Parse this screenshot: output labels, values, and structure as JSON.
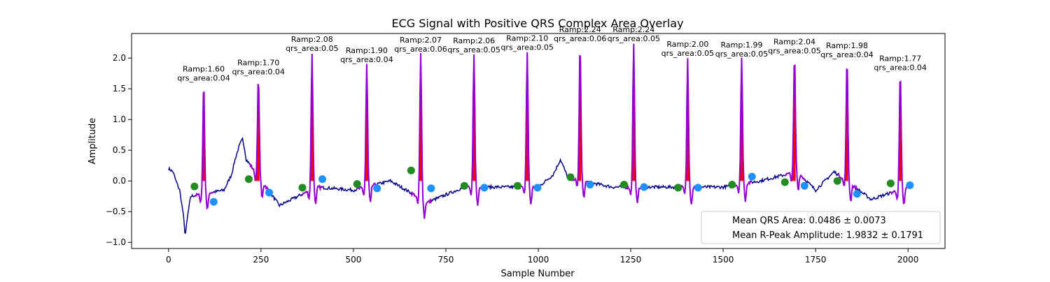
{
  "chart_data": {
    "type": "line",
    "title": "ECG Signal with Positive QRS Complex Area Overlay",
    "xlabel": "Sample Number",
    "ylabel": "Amplitude",
    "xlim": [
      -100,
      2100
    ],
    "ylim": [
      -1.1,
      2.4
    ],
    "grid": false,
    "x_ticks": [
      0,
      250,
      500,
      750,
      1000,
      1250,
      1500,
      1750,
      2000
    ],
    "y_ticks": [
      -1.0,
      -0.5,
      0.0,
      0.5,
      1.0,
      1.5,
      2.0
    ],
    "colors": {
      "signal": "#00008b",
      "qrs_segment": "#9400d3",
      "qrs_area_fill": "#ff0000",
      "q_point": "#228b22",
      "s_point": "#1e90ff"
    },
    "beats": [
      {
        "r_x": 95,
        "r_amp": 1.6,
        "qrs_area": 0.04,
        "q_x": 70,
        "q_y": -0.09,
        "s_x": 122,
        "s_y": -0.34,
        "label": [
          "Ramp:1.60",
          "qrs_area:0.04"
        ]
      },
      {
        "r_x": 243,
        "r_amp": 1.7,
        "qrs_area": 0.04,
        "q_x": 217,
        "q_y": 0.03,
        "s_x": 272,
        "s_y": -0.19,
        "label": [
          "Ramp:1.70",
          "qrs_area:0.04"
        ]
      },
      {
        "r_x": 388,
        "r_amp": 2.08,
        "qrs_area": 0.05,
        "q_x": 362,
        "q_y": -0.11,
        "s_x": 416,
        "s_y": 0.03,
        "label": [
          "Ramp:2.08",
          "qrs_area:0.05"
        ]
      },
      {
        "r_x": 536,
        "r_amp": 1.9,
        "qrs_area": 0.04,
        "q_x": 510,
        "q_y": -0.05,
        "s_x": 564,
        "s_y": -0.12,
        "label": [
          "Ramp:1.90",
          "qrs_area:0.04"
        ]
      },
      {
        "r_x": 682,
        "r_amp": 2.07,
        "qrs_area": 0.06,
        "q_x": 656,
        "q_y": 0.17,
        "s_x": 710,
        "s_y": -0.12,
        "label": [
          "Ramp:2.07",
          "qrs_area:0.06"
        ]
      },
      {
        "r_x": 826,
        "r_amp": 2.06,
        "qrs_area": 0.05,
        "q_x": 800,
        "q_y": -0.08,
        "s_x": 854,
        "s_y": -0.11,
        "label": [
          "Ramp:2.06",
          "qrs_area:0.05"
        ]
      },
      {
        "r_x": 970,
        "r_amp": 2.1,
        "qrs_area": 0.05,
        "q_x": 944,
        "q_y": -0.08,
        "s_x": 998,
        "s_y": -0.11,
        "label": [
          "Ramp:2.10",
          "qrs_area:0.05"
        ]
      },
      {
        "r_x": 1113,
        "r_amp": 2.24,
        "qrs_area": 0.06,
        "q_x": 1087,
        "q_y": 0.06,
        "s_x": 1140,
        "s_y": -0.06,
        "label": [
          "Ramp:2.24",
          "qrs_area:0.06"
        ]
      },
      {
        "r_x": 1258,
        "r_amp": 2.24,
        "qrs_area": 0.05,
        "q_x": 1232,
        "q_y": -0.06,
        "s_x": 1286,
        "s_y": -0.1,
        "label": [
          "Ramp:2.24",
          "qrs_area:0.05"
        ]
      },
      {
        "r_x": 1404,
        "r_amp": 2.0,
        "qrs_area": 0.05,
        "q_x": 1378,
        "q_y": -0.11,
        "s_x": 1432,
        "s_y": -0.11,
        "label": [
          "Ramp:2.00",
          "qrs_area:0.05"
        ]
      },
      {
        "r_x": 1550,
        "r_amp": 1.99,
        "qrs_area": 0.05,
        "q_x": 1524,
        "q_y": -0.06,
        "s_x": 1578,
        "s_y": 0.07,
        "label": [
          "Ramp:1.99",
          "qrs_area:0.05"
        ]
      },
      {
        "r_x": 1693,
        "r_amp": 2.04,
        "qrs_area": 0.05,
        "q_x": 1667,
        "q_y": -0.02,
        "s_x": 1720,
        "s_y": -0.08,
        "label": [
          "Ramp:2.04",
          "qrs_area:0.05"
        ]
      },
      {
        "r_x": 1835,
        "r_amp": 1.98,
        "qrs_area": 0.04,
        "q_x": 1809,
        "q_y": 0.0,
        "s_x": 1862,
        "s_y": -0.21,
        "label": [
          "Ramp:1.98",
          "qrs_area:0.04"
        ]
      },
      {
        "r_x": 1979,
        "r_amp": 1.77,
        "qrs_area": 0.04,
        "q_x": 1953,
        "q_y": -0.04,
        "s_x": 2005,
        "s_y": -0.07,
        "label": [
          "Ramp:1.77",
          "qrs_area:0.04"
        ]
      }
    ],
    "baseline": {
      "x": [
        0,
        12,
        20,
        30,
        40,
        45,
        52,
        60,
        150,
        170,
        180,
        190,
        195,
        200,
        205,
        210,
        300,
        400,
        500,
        600,
        700,
        800,
        900,
        1000,
        1040,
        1060,
        1080,
        1200,
        1300,
        1400,
        1500,
        1600,
        1700,
        1750,
        1800,
        1900,
        2000
      ],
      "y": [
        0.2,
        0.15,
        0.0,
        -0.15,
        -0.55,
        -0.9,
        -0.55,
        -0.25,
        -0.15,
        0.1,
        0.35,
        0.55,
        0.62,
        0.68,
        0.55,
        0.35,
        -0.4,
        -0.1,
        -0.15,
        0.0,
        -0.35,
        -0.1,
        -0.1,
        -0.1,
        0.1,
        0.35,
        0.05,
        -0.1,
        -0.1,
        -0.1,
        -0.1,
        0.0,
        0.15,
        -0.15,
        0.15,
        -0.3,
        -0.1
      ]
    },
    "legend": {
      "position": "lower-right",
      "entries": [
        "Mean QRS Area: 0.0486 ± 0.0073",
        "Mean R-Peak Amplitude: 1.9832 ± 0.1791"
      ]
    }
  }
}
